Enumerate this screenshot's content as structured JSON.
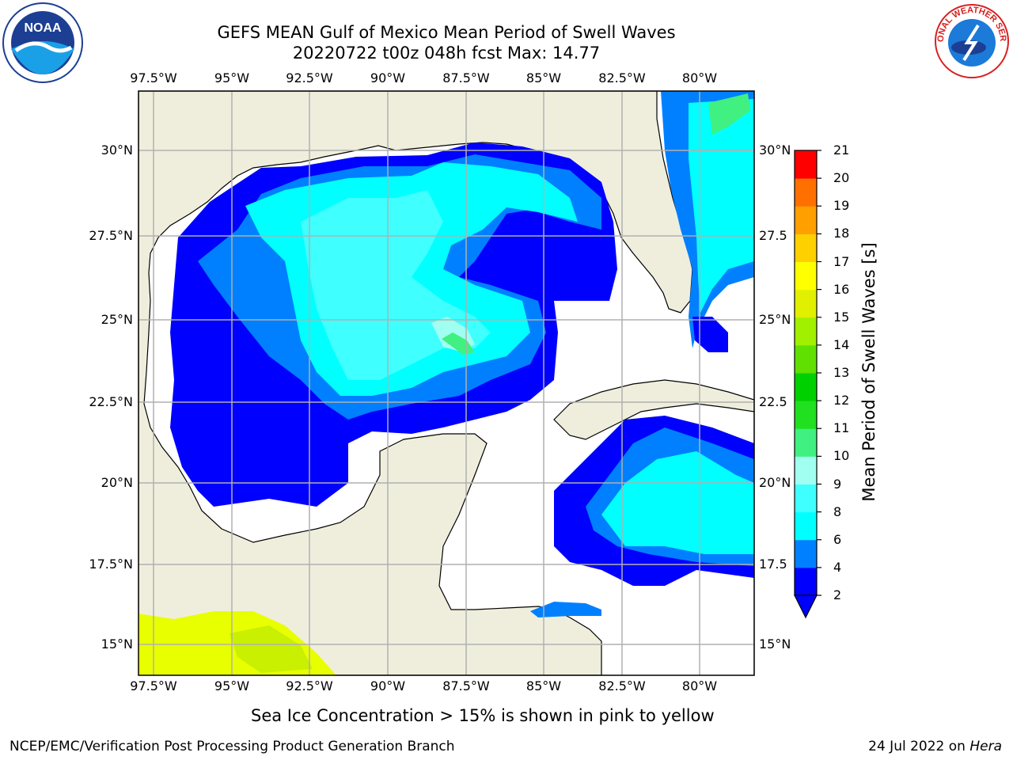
{
  "header": {
    "title_line1": "GEFS MEAN Gulf of Mexico Mean Period of Swell Waves",
    "title_line2": "20220722 t00z 048h fcst   Max: 14.77"
  },
  "axes": {
    "longitude_labels": [
      "97.5°W",
      "95°W",
      "92.5°W",
      "90°W",
      "87.5°W",
      "85°W",
      "82.5°W",
      "80°W"
    ],
    "latitude_labels_left": [
      "30°N",
      "27.5°N",
      "25°N",
      "22.5°N",
      "20°N",
      "17.5°N",
      "15°N"
    ],
    "latitude_labels_right": [
      "30°N",
      "27.5",
      "25°N",
      "22.5",
      "20°N",
      "17.5",
      "15°N"
    ]
  },
  "colorbar": {
    "title": "Mean Period of Swell Waves [s]",
    "tick_labels": [
      "2",
      "4",
      "6",
      "8",
      "9",
      "10",
      "11",
      "12",
      "13",
      "14",
      "15",
      "16",
      "17",
      "18",
      "19",
      "20",
      "21"
    ],
    "colors": [
      "#0000ff",
      "#0080ff",
      "#00ffff",
      "#40ffff",
      "#a0fff0",
      "#40f080",
      "#20e020",
      "#00d000",
      "#60e000",
      "#a0f000",
      "#e0f000",
      "#ffff00",
      "#ffd000",
      "#ffa000",
      "#ff7000",
      "#ff4000",
      "#ff0000"
    ],
    "extend": "min"
  },
  "map_colors": {
    "land": "#efeedd",
    "ocean_nodata": "#ffffff",
    "gridline": "#b0b0b0"
  },
  "note": "Sea Ice Concentration > 15% is shown in pink to yellow",
  "footer": {
    "left": "NCEP/EMC/Verification Post Processing Product Generation Branch",
    "right_date": "24 Jul 2022 on ",
    "right_host": "Hera"
  },
  "logos": {
    "left": "noaa-logo",
    "right": "nws-logo",
    "right_text": "NATIONAL WEATHER SERVICE"
  }
}
